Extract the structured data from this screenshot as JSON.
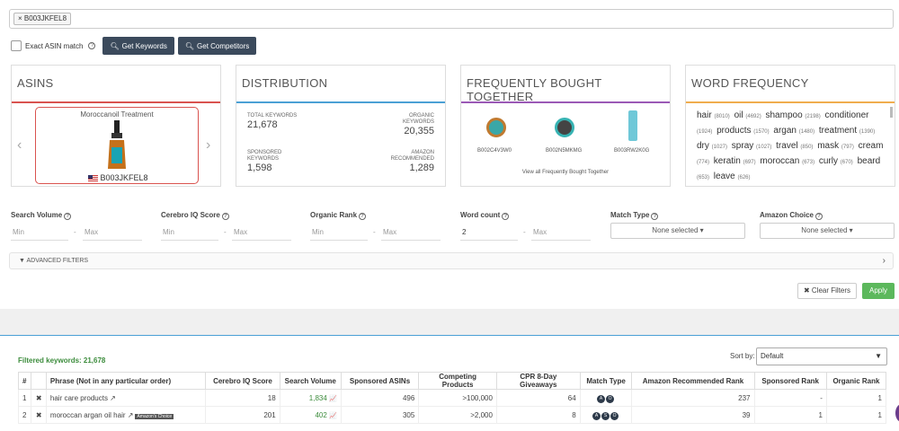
{
  "search": {
    "tag": "× B003JKFEL8"
  },
  "controls": {
    "exact_label": "Exact ASIN match",
    "get_keywords": "Get Keywords",
    "get_competitors": "Get Competitors"
  },
  "cards": {
    "asins": {
      "title": "ASINS",
      "product": "Moroccanoil Treatment",
      "asin": "B003JKFEL8"
    },
    "distribution": {
      "title": "DISTRIBUTION",
      "total_label": "TOTAL KEYWORDS",
      "total": "21,678",
      "organic_label": "ORGANIC KEYWORDS",
      "organic": "20,355",
      "sponsored_label": "SPONSORED KEYWORDS",
      "sponsored": "1,598",
      "amazon_label": "AMAZON RECOMMENDED",
      "amazon": "1,289"
    },
    "fbt": {
      "title": "FREQUENTLY BOUGHT TOGETHER",
      "items": [
        "B002C4V3W0",
        "B002N5MKMG",
        "B003RW2K0G"
      ],
      "link": "View all Frequently Bought Together"
    },
    "word_freq": {
      "title": "WORD FREQUENCY",
      "words": [
        [
          "hair",
          "8010"
        ],
        [
          "oil",
          "4692"
        ],
        [
          "shampoo",
          "2198"
        ],
        [
          "conditioner",
          "1924"
        ],
        [
          "products",
          "1570"
        ],
        [
          "argan",
          "1480"
        ],
        [
          "treatment",
          "1390"
        ],
        [
          "dry",
          "1027"
        ],
        [
          "spray",
          "1027"
        ],
        [
          "travel",
          "850"
        ],
        [
          "mask",
          "797"
        ],
        [
          "cream",
          "774"
        ],
        [
          "keratin",
          "697"
        ],
        [
          "moroccan",
          "673"
        ],
        [
          "curly",
          "670"
        ],
        [
          "beard",
          "653"
        ],
        [
          "leave",
          "626"
        ]
      ]
    }
  },
  "filters": {
    "search_volume": "Search Volume",
    "cerebro": "Cerebro IQ Score",
    "organic_rank": "Organic Rank",
    "word_count": "Word count",
    "match_type": "Match Type",
    "amazon_choice": "Amazon Choice",
    "min": "Min",
    "max": "Max",
    "word_min_value": "2",
    "none_selected": "None selected",
    "advanced": "ADVANCED FILTERS",
    "clear": "Clear Filters",
    "apply": "Apply"
  },
  "results": {
    "filtered": "Filtered keywords: 21,678",
    "sort_label": "Sort by:",
    "sort_value": "Default",
    "headers": [
      "#",
      "",
      "Phrase (Not in any particular order)",
      "Cerebro IQ Score",
      "Search Volume",
      "Sponsored ASINs",
      "Competing Products",
      "CPR 8-Day Giveaways",
      "Match Type",
      "Amazon Recommended Rank",
      "Sponsored Rank",
      "Organic Rank"
    ],
    "rows": [
      {
        "n": "1",
        "x": "✖",
        "phrase": "hair care products",
        "iq": "18",
        "sv": "1,834",
        "sa": "496",
        "cp": ">100,000",
        "cpr": "64",
        "match": [
          "A",
          "O"
        ],
        "arr": "237",
        "sr": "-",
        "or": "1"
      },
      {
        "n": "2",
        "x": "✖",
        "phrase": "moroccan argan oil hair",
        "iq": "201",
        "sv": "402",
        "sa": "305",
        "cp": ">2,000",
        "cpr": "8",
        "match": [
          "A",
          "S",
          "O"
        ],
        "arr": "39",
        "sr": "1",
        "or": "1",
        "badge": "Amazon's Choice"
      }
    ]
  }
}
